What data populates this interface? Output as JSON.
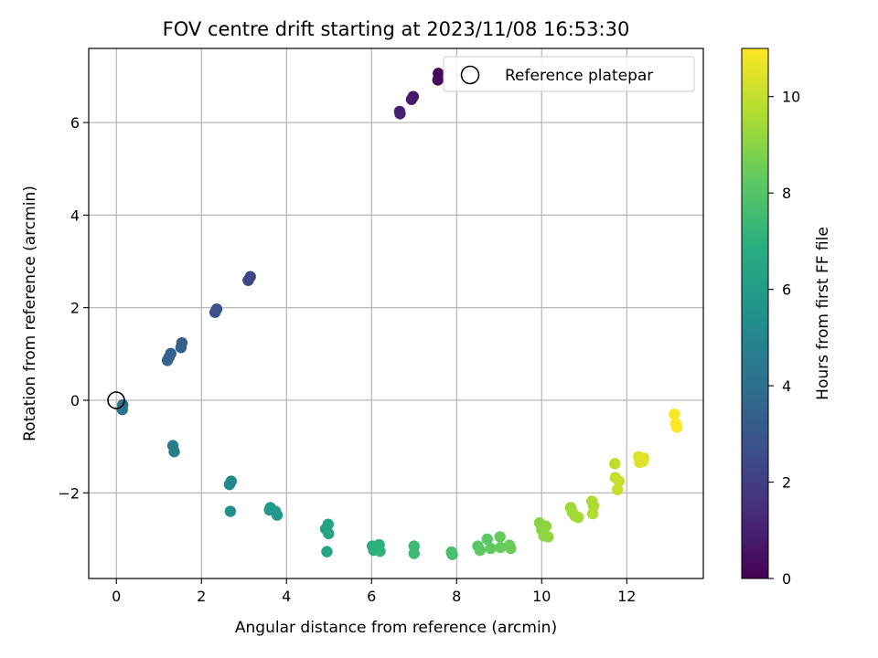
{
  "chart_data": {
    "type": "scatter",
    "title": "FOV centre drift starting at 2023/11/08 16:53:30",
    "xlabel": "Angular distance from reference (arcmin)",
    "ylabel": "Rotation from reference (arcmin)",
    "xlim": [
      -0.65,
      13.8
    ],
    "ylim": [
      -3.85,
      7.6
    ],
    "xticks": [
      0,
      2,
      4,
      6,
      8,
      10,
      12
    ],
    "xtick_labels": [
      "0",
      "2",
      "4",
      "6",
      "8",
      "10",
      "12"
    ],
    "yticks": [
      -2,
      0,
      2,
      4,
      6
    ],
    "ytick_labels": [
      "−2",
      "0",
      "2",
      "4",
      "6"
    ],
    "grid": true,
    "legend": {
      "placement": "top-right",
      "entry": "Reference platepar"
    },
    "reference_point": {
      "x": 0,
      "y": 0
    },
    "colorbar": {
      "label": "Hours from first FF file",
      "colormap": "viridis",
      "range": [
        0,
        11
      ],
      "ticks": [
        0,
        2,
        4,
        6,
        8,
        10
      ],
      "tick_labels": [
        "0",
        "2",
        "4",
        "6",
        "8",
        "10"
      ]
    },
    "series": [
      {
        "points": [
          [
            7.57,
            7.06,
            0.25
          ],
          [
            7.56,
            6.92,
            0.3
          ],
          [
            6.98,
            6.56,
            0.7
          ],
          [
            6.94,
            6.5,
            0.75
          ],
          [
            6.66,
            6.24,
            0.95
          ],
          [
            6.67,
            6.19,
            1.0
          ],
          [
            3.15,
            2.67,
            2.3
          ],
          [
            3.1,
            2.59,
            2.35
          ],
          [
            2.36,
            1.97,
            2.8
          ],
          [
            2.32,
            1.9,
            2.85
          ],
          [
            1.54,
            1.24,
            3.2
          ],
          [
            1.52,
            1.14,
            3.25
          ],
          [
            1.28,
            1.01,
            3.4
          ],
          [
            1.24,
            0.93,
            3.45
          ],
          [
            1.2,
            0.86,
            3.5
          ],
          [
            0.15,
            -0.1,
            4.1
          ],
          [
            0.14,
            -0.2,
            4.15
          ],
          [
            1.33,
            -0.98,
            4.6
          ],
          [
            1.36,
            -1.11,
            4.65
          ],
          [
            2.7,
            -1.75,
            5.2
          ],
          [
            2.66,
            -1.82,
            5.25
          ],
          [
            2.68,
            -2.4,
            5.5
          ],
          [
            3.62,
            -2.32,
            5.8
          ],
          [
            3.74,
            -2.4,
            5.85
          ],
          [
            3.78,
            -2.48,
            5.9
          ],
          [
            3.6,
            -2.37,
            5.9
          ],
          [
            4.92,
            -2.78,
            6.3
          ],
          [
            4.98,
            -2.68,
            6.35
          ],
          [
            4.99,
            -2.88,
            6.4
          ],
          [
            4.95,
            -3.27,
            6.4
          ],
          [
            6.02,
            -3.15,
            6.9
          ],
          [
            6.05,
            -3.24,
            6.95
          ],
          [
            6.18,
            -3.12,
            7.0
          ],
          [
            6.2,
            -3.26,
            7.05
          ],
          [
            7.0,
            -3.15,
            7.4
          ],
          [
            7.0,
            -3.31,
            7.45
          ],
          [
            7.88,
            -3.28,
            7.7
          ],
          [
            7.9,
            -3.33,
            7.75
          ],
          [
            8.5,
            -3.15,
            8.1
          ],
          [
            8.55,
            -3.24,
            8.15
          ],
          [
            8.72,
            -3.0,
            8.2
          ],
          [
            8.8,
            -3.2,
            8.25
          ],
          [
            9.02,
            -2.95,
            8.35
          ],
          [
            9.03,
            -3.18,
            8.4
          ],
          [
            9.24,
            -3.13,
            8.45
          ],
          [
            9.27,
            -3.2,
            8.5
          ],
          [
            9.95,
            -2.65,
            9.0
          ],
          [
            10.0,
            -2.8,
            9.05
          ],
          [
            10.05,
            -2.93,
            9.1
          ],
          [
            10.1,
            -2.72,
            9.1
          ],
          [
            10.15,
            -2.95,
            9.15
          ],
          [
            10.68,
            -2.32,
            9.35
          ],
          [
            10.72,
            -2.42,
            9.4
          ],
          [
            10.78,
            -2.5,
            9.45
          ],
          [
            10.86,
            -2.53,
            9.5
          ],
          [
            11.18,
            -2.18,
            9.6
          ],
          [
            11.22,
            -2.28,
            9.65
          ],
          [
            11.2,
            -2.45,
            9.7
          ],
          [
            11.72,
            -1.37,
            9.95
          ],
          [
            11.73,
            -1.67,
            10.0
          ],
          [
            11.82,
            -1.75,
            10.05
          ],
          [
            11.78,
            -1.93,
            10.05
          ],
          [
            12.28,
            -1.22,
            10.4
          ],
          [
            12.3,
            -1.34,
            10.45
          ],
          [
            12.4,
            -1.25,
            10.5
          ],
          [
            12.38,
            -1.32,
            10.5
          ],
          [
            13.12,
            -0.3,
            10.9
          ],
          [
            13.15,
            -0.5,
            10.95
          ],
          [
            13.18,
            -0.58,
            11.0
          ]
        ]
      }
    ]
  }
}
